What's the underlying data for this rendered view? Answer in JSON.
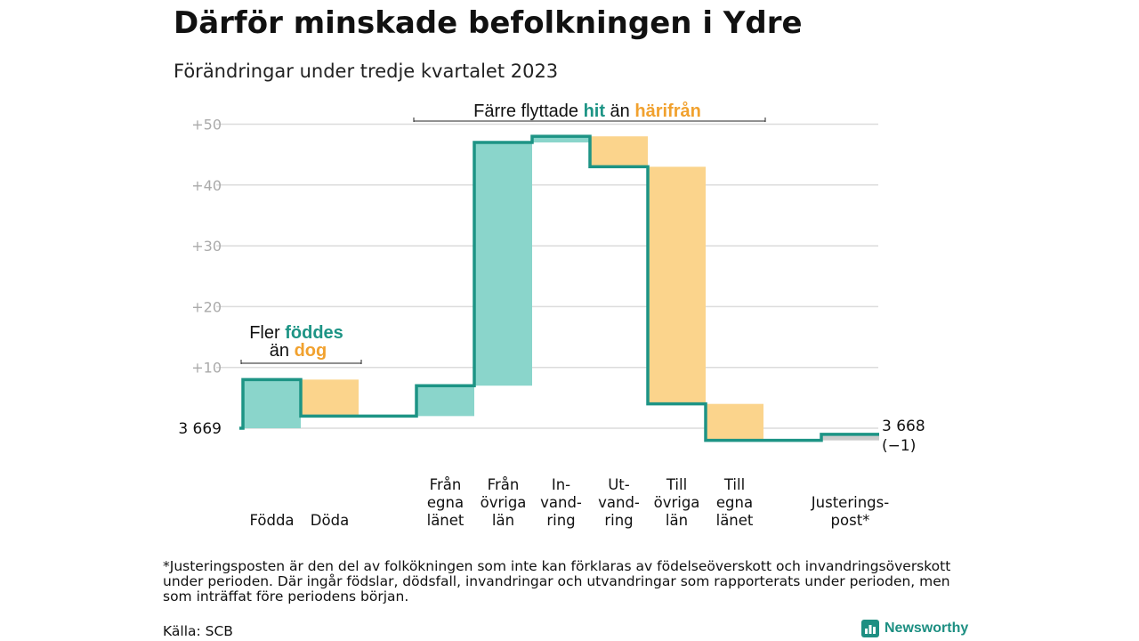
{
  "header": {
    "title": "Därför minskade befolkningen i Ydre",
    "subtitle": "Förändringar under tredje kvartalet 2023"
  },
  "colors": {
    "increase_fill": "#8ad5cb",
    "decrease_fill": "#fbd48c",
    "adjust_fill": "#cccccc",
    "step_line": "#1d9485",
    "teal_text": "#1d9485",
    "orange_text": "#f1a12e",
    "grid": "#dcdcdc",
    "tick_text": "#aaaaaa"
  },
  "chart_data": {
    "type": "waterfall",
    "start_label": "3  669",
    "end_label": [
      "3 668",
      "(−1)"
    ],
    "y_ticks": [
      "+50",
      "+40",
      "+30",
      "+20",
      "+10"
    ],
    "y_tick_values": [
      50,
      40,
      30,
      20,
      10
    ],
    "ylim": [
      -3,
      51
    ],
    "steps": [
      {
        "label": [
          "Födda"
        ],
        "delta": 8
      },
      {
        "label": [
          "Döda"
        ],
        "delta": -6
      },
      {
        "label": [],
        "delta": 0
      },
      {
        "label": [
          "Från",
          "egna",
          "länet"
        ],
        "delta": 5
      },
      {
        "label": [
          "Från",
          "övriga",
          "län"
        ],
        "delta": 40
      },
      {
        "label": [
          "In-",
          "vand-",
          "ring"
        ],
        "delta": 1
      },
      {
        "label": [
          "Ut-",
          "vand-",
          "ring"
        ],
        "delta": -5
      },
      {
        "label": [
          "Till",
          "övriga",
          "län"
        ],
        "delta": -39
      },
      {
        "label": [
          "Till",
          "egna",
          "länet"
        ],
        "delta": -6
      },
      {
        "label": [],
        "delta": 0
      },
      {
        "label": [
          "Justerings-",
          "post*"
        ],
        "delta": 1,
        "adjustment": true
      }
    ],
    "annotations": [
      {
        "id": "births-deaths",
        "parts": [
          [
            "Fler ",
            "plain"
          ],
          [
            "föddes",
            "teal"
          ]
        ],
        "parts2": [
          [
            "än ",
            "plain"
          ],
          [
            "dog",
            "orange"
          ]
        ]
      },
      {
        "id": "migration",
        "parts": [
          [
            "Färre flyttade ",
            "plain"
          ],
          [
            "hit",
            "teal"
          ],
          [
            "  än ",
            "plain"
          ],
          [
            "härifrån",
            "orange"
          ]
        ]
      }
    ]
  },
  "footer": {
    "footnote": "*Justeringsposten är den del av folkökningen som inte kan förklaras av födelseöverskott och invandringsöverskott under perioden. Där ingår födslar, dödsfall, invandringar och utvandringar som rapporterats under perioden, men som inträffat före periodens början.",
    "source": "Källa: SCB",
    "brand": "Newsworthy",
    "brand_icon": "newsworthy-logo-icon"
  }
}
